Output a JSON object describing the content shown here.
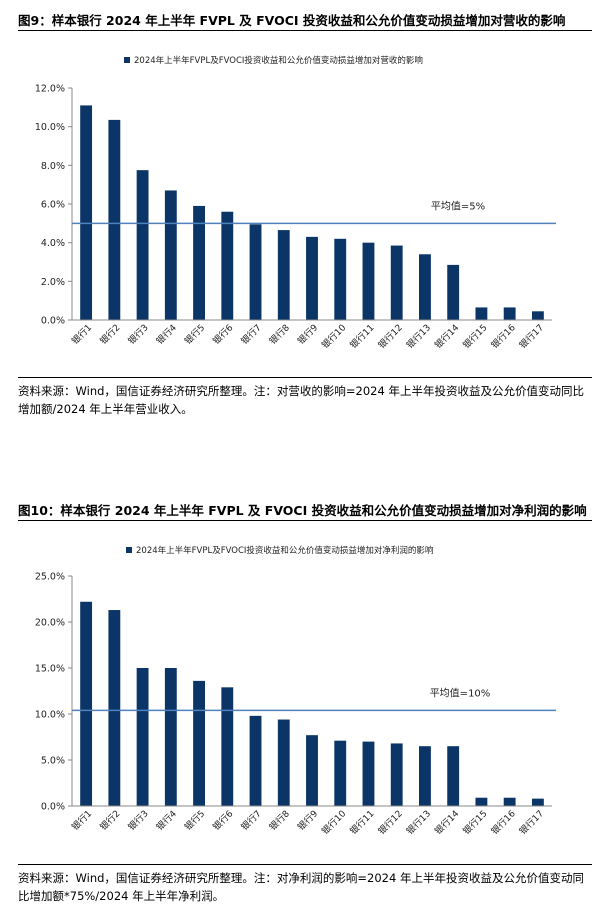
{
  "figures": [
    {
      "title": "图9：样本银行 2024 年上半年 FVPL 及 FVOCI 投资收益和公允价值变动损益增加对营收的影响",
      "note": "资料来源：Wind，国信证券经济研究所整理。注：对营收的影响=2024 年上半年投资收益及公允价值变动同比增加额/2024 年上半年营业收入。",
      "chart_data": {
        "type": "bar",
        "categories": [
          "银行1",
          "银行2",
          "银行3",
          "银行4",
          "银行5",
          "银行6",
          "银行7",
          "银行8",
          "银行9",
          "银行10",
          "银行11",
          "银行12",
          "银行13",
          "银行14",
          "银行15",
          "银行16",
          "银行17"
        ],
        "series": [
          {
            "name": "2024年上半年FVPL及FVOCI投资收益和公允价值变动损益增加对营收的影响",
            "values": [
              11.1,
              10.35,
              7.75,
              6.7,
              5.9,
              5.6,
              4.95,
              4.65,
              4.3,
              4.2,
              4.0,
              3.85,
              3.4,
              2.85,
              0.65,
              0.65,
              0.45
            ]
          }
        ],
        "ylim": [
          0,
          12
        ],
        "yticks": [
          0,
          2,
          4,
          6,
          8,
          10,
          12
        ],
        "ytick_labels": [
          "0.0%",
          "2.0%",
          "4.0%",
          "6.0%",
          "8.0%",
          "10.0%",
          "12.0%"
        ],
        "average_line": {
          "value": 5,
          "label": "平均值=5%"
        },
        "legend_position": "top",
        "bar_color": "#0b3567",
        "line_color": "#4f81bd"
      }
    },
    {
      "title": "图10：样本银行 2024 年上半年 FVPL 及 FVOCI 投资收益和公允价值变动损益增加对净利润的影响",
      "note": "资料来源：Wind，国信证券经济研究所整理。注：对净利润的影响=2024 年上半年投资收益及公允价值变动同比增加额*75%/2024 年上半年净利润。",
      "chart_data": {
        "type": "bar",
        "categories": [
          "银行1",
          "银行2",
          "银行3",
          "银行4",
          "银行5",
          "银行6",
          "银行7",
          "银行8",
          "银行9",
          "银行10",
          "银行11",
          "银行12",
          "银行13",
          "银行14",
          "银行15",
          "银行16",
          "银行17"
        ],
        "series": [
          {
            "name": "2024年上半年FVPL及FVOCI投资收益和公允价值变动损益增加对净利润的影响",
            "values": [
              22.2,
              21.3,
              15.0,
              15.0,
              13.6,
              12.9,
              9.8,
              9.4,
              7.7,
              7.1,
              7.0,
              6.8,
              6.5,
              6.5,
              0.9,
              0.9,
              0.8
            ]
          }
        ],
        "ylim": [
          0,
          25
        ],
        "yticks": [
          0,
          5,
          10,
          15,
          20,
          25
        ],
        "ytick_labels": [
          "0.0%",
          "5.0%",
          "10.0%",
          "15.0%",
          "20.0%",
          "25.0%"
        ],
        "average_line": {
          "value": 10.4,
          "label": "平均值=10%"
        },
        "legend_position": "top",
        "bar_color": "#0b3567",
        "line_color": "#4f81bd"
      }
    }
  ]
}
